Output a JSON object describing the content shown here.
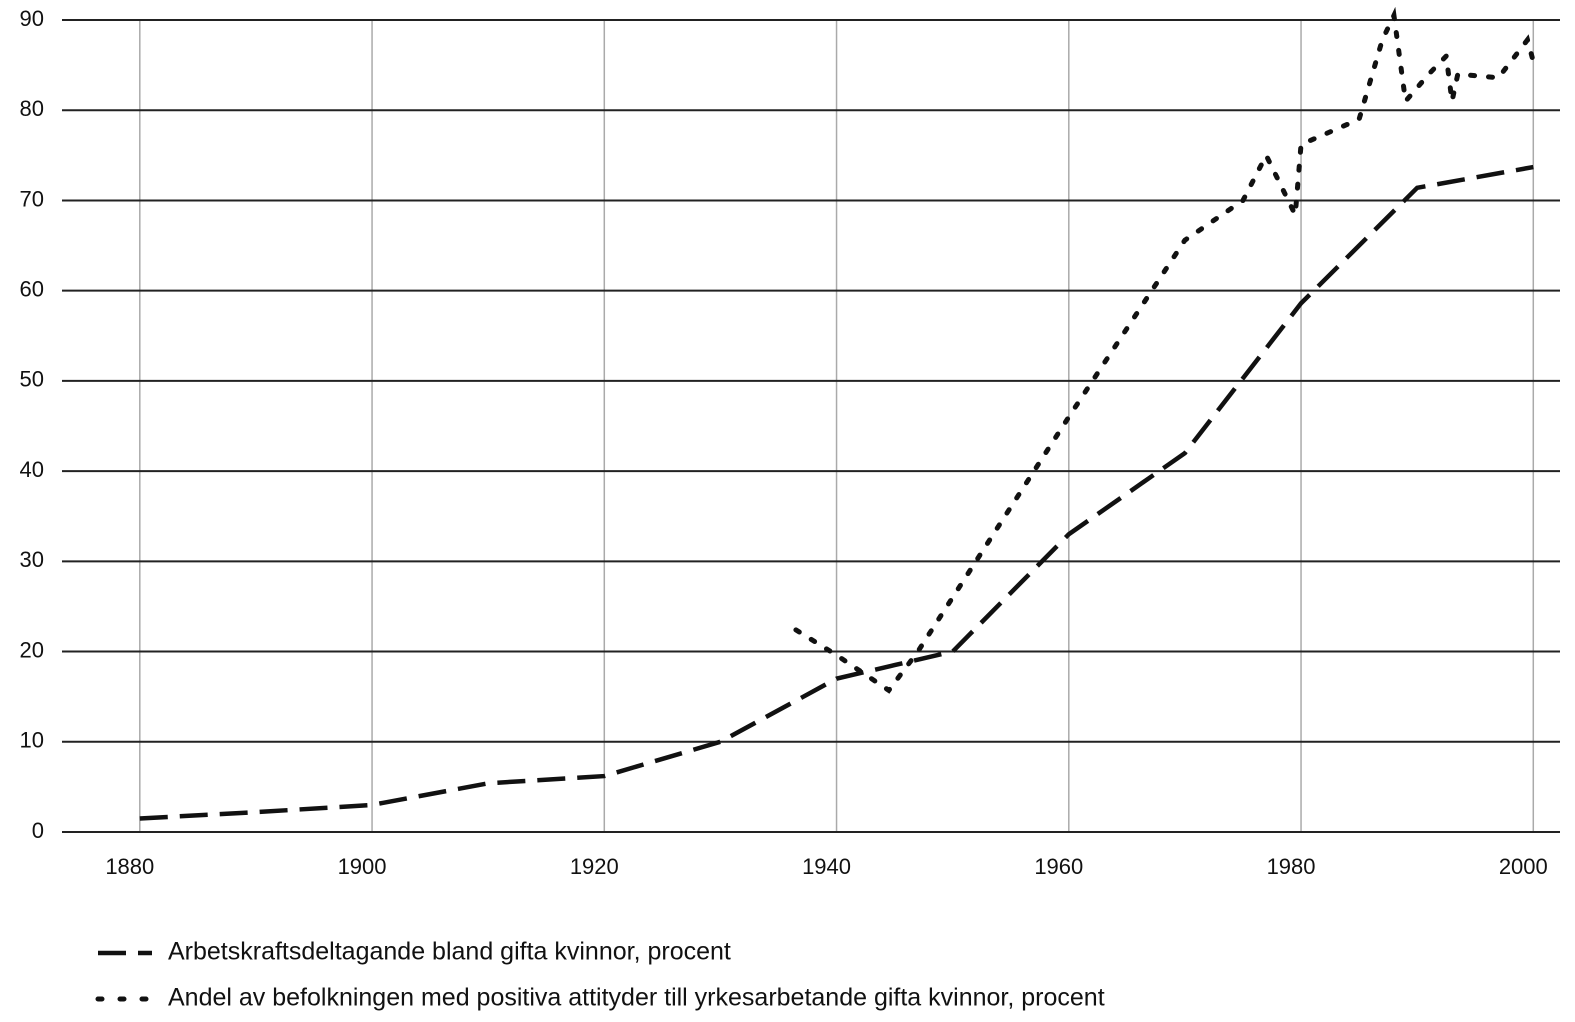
{
  "chart_data": {
    "type": "line",
    "xlim": [
      1873.3,
      2002.3
    ],
    "ylim": [
      0,
      90
    ],
    "xticks": [
      1880,
      1900,
      1920,
      1940,
      1960,
      1980,
      2000
    ],
    "yticks": [
      0,
      10,
      20,
      30,
      40,
      50,
      60,
      70,
      80,
      90
    ],
    "grid": true,
    "legend": "bottom",
    "series": [
      {
        "name": "Arbetskraftsdeltagande bland gifta kvinnor, procent",
        "color": "#111111",
        "style": "dashed",
        "x": [
          1880,
          1890,
          1900,
          1910,
          1920,
          1930,
          1940,
          1945,
          1950,
          1960,
          1970,
          1980,
          1990,
          2000
        ],
        "values": [
          1.5,
          2.2,
          3,
          5.4,
          6.2,
          10,
          17,
          18.5,
          20,
          33,
          42,
          58.6,
          71.4,
          73.7
        ]
      },
      {
        "name": "Andel av befolkningen med positiva attityder till yrkesarbetande gifta kvinnor, procent",
        "color": "#111111",
        "style": "dotted",
        "x": [
          1936.5,
          1940,
          1944.5,
          1947,
          1960,
          1970,
          1975,
          1977,
          1979.5,
          1980,
          1985,
          1987,
          1988,
          1989,
          1991,
          1992.5,
          1993,
          1993.5,
          1997,
          1999.5,
          2000
        ],
        "values": [
          22.4,
          19.6,
          15.7,
          20,
          46,
          65.6,
          70,
          75,
          68.4,
          76.2,
          79,
          87.8,
          90.5,
          81,
          84,
          86,
          81,
          84,
          83.6,
          87.8,
          85.4
        ]
      }
    ]
  }
}
